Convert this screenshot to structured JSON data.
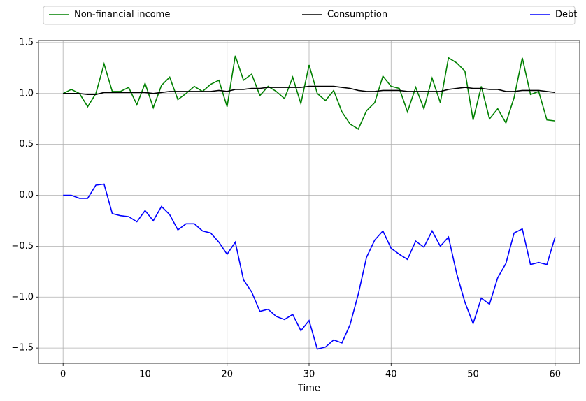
{
  "chart_data": {
    "type": "line",
    "xlabel": "Time",
    "grid": true,
    "legend": "top-outside",
    "xlim": [
      -3,
      63
    ],
    "ylim": [
      -1.65,
      1.52
    ],
    "xticks": [
      0,
      10,
      20,
      30,
      40,
      50,
      60
    ],
    "yticks": [
      {
        "value": -1.5,
        "label": "−1.5"
      },
      {
        "value": -1.0,
        "label": "−1.0"
      },
      {
        "value": -0.5,
        "label": "−0.5"
      },
      {
        "value": 0.0,
        "label": "0.0"
      },
      0.5,
      {
        "value": 1.0,
        "label": "1.0"
      },
      1.5
    ],
    "x": [
      0,
      1,
      2,
      3,
      4,
      5,
      6,
      7,
      8,
      9,
      10,
      11,
      12,
      13,
      14,
      15,
      16,
      17,
      18,
      19,
      20,
      21,
      22,
      23,
      24,
      25,
      26,
      27,
      28,
      29,
      30,
      31,
      32,
      33,
      34,
      35,
      36,
      37,
      38,
      39,
      40,
      41,
      42,
      43,
      44,
      45,
      46,
      47,
      48,
      49,
      50,
      51,
      52,
      53,
      54,
      55,
      56,
      57,
      58,
      59,
      60
    ],
    "series": [
      {
        "name": "Non-financial income",
        "color": "#008000",
        "values": [
          1.0,
          1.04,
          1.0,
          0.87,
          1.0,
          1.29,
          1.02,
          1.02,
          1.06,
          0.89,
          1.1,
          0.86,
          1.08,
          1.16,
          0.94,
          1.0,
          1.07,
          1.02,
          1.09,
          1.13,
          0.87,
          1.37,
          1.13,
          1.19,
          0.98,
          1.07,
          1.02,
          0.95,
          1.16,
          0.9,
          1.28,
          1.0,
          0.93,
          1.03,
          0.82,
          0.7,
          0.65,
          0.83,
          0.91,
          1.17,
          1.07,
          1.05,
          0.82,
          1.06,
          0.85,
          1.15,
          0.91,
          1.35,
          1.3,
          1.22,
          0.74,
          1.07,
          0.75,
          0.85,
          0.71,
          0.96,
          1.35,
          0.99,
          1.02,
          0.74,
          0.73
        ]
      },
      {
        "name": "Consumption",
        "color": "#000000",
        "values": [
          1.0,
          1.0,
          1.0,
          0.99,
          0.99,
          1.01,
          1.01,
          1.01,
          1.01,
          1.01,
          1.01,
          1.0,
          1.01,
          1.02,
          1.02,
          1.02,
          1.02,
          1.02,
          1.02,
          1.03,
          1.02,
          1.04,
          1.04,
          1.05,
          1.05,
          1.06,
          1.06,
          1.06,
          1.06,
          1.06,
          1.07,
          1.07,
          1.07,
          1.07,
          1.06,
          1.05,
          1.03,
          1.02,
          1.02,
          1.03,
          1.03,
          1.03,
          1.02,
          1.02,
          1.02,
          1.02,
          1.02,
          1.04,
          1.05,
          1.06,
          1.05,
          1.05,
          1.04,
          1.04,
          1.02,
          1.02,
          1.03,
          1.03,
          1.03,
          1.02,
          1.01
        ]
      },
      {
        "name": "Debt",
        "color": "#0000ff",
        "values": [
          0.0,
          0.0,
          -0.03,
          -0.03,
          0.1,
          0.11,
          -0.18,
          -0.2,
          -0.21,
          -0.26,
          -0.15,
          -0.25,
          -0.11,
          -0.19,
          -0.34,
          -0.28,
          -0.28,
          -0.35,
          -0.37,
          -0.46,
          -0.58,
          -0.46,
          -0.83,
          -0.95,
          -1.14,
          -1.12,
          -1.19,
          -1.22,
          -1.17,
          -1.33,
          -1.23,
          -1.51,
          -1.49,
          -1.42,
          -1.45,
          -1.27,
          -0.97,
          -0.61,
          -0.44,
          -0.35,
          -0.52,
          -0.58,
          -0.63,
          -0.45,
          -0.51,
          -0.35,
          -0.5,
          -0.41,
          -0.77,
          -1.05,
          -1.26,
          -1.01,
          -1.07,
          -0.81,
          -0.67,
          -0.37,
          -0.33,
          -0.68,
          -0.66,
          -0.68,
          -0.41
        ]
      }
    ]
  }
}
